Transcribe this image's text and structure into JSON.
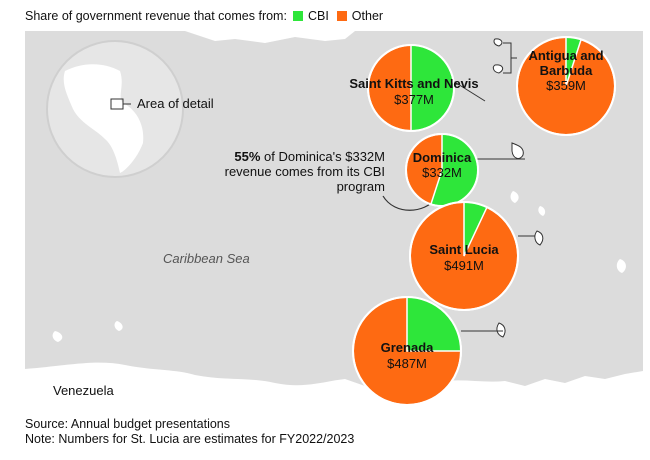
{
  "legend": {
    "prefix": "Share of government revenue that comes from:",
    "items": [
      {
        "label": "CBI",
        "color": "#2ee63a"
      },
      {
        "label": "Other",
        "color": "#fe6a12"
      }
    ]
  },
  "map": {
    "sea_label": "Caribbean Sea",
    "country_label": "Venezuela",
    "inset_label": "Area of detail"
  },
  "annotation": {
    "bold": "55%",
    "rest": "of Dominica's $332M revenue comes from its CBI program"
  },
  "chart_data": {
    "type": "pie",
    "title": "Share of government revenue that comes from: CBI, Other",
    "series": [
      {
        "name": "Saint Kitts and Nevis",
        "revenue": "$377M",
        "cbi_share": 0.5,
        "other_share": 0.5
      },
      {
        "name": "Antigua and Barbuda",
        "revenue": "$359M",
        "cbi_share": 0.05,
        "other_share": 0.95
      },
      {
        "name": "Dominica",
        "revenue": "$332M",
        "cbi_share": 0.55,
        "other_share": 0.45
      },
      {
        "name": "Saint Lucia",
        "revenue": "$491M",
        "cbi_share": 0.07,
        "other_share": 0.93
      },
      {
        "name": "Grenada",
        "revenue": "$487M",
        "cbi_share": 0.25,
        "other_share": 0.75
      }
    ],
    "colors": {
      "cbi": "#2ee63a",
      "other": "#fe6a12"
    }
  },
  "footer": {
    "source": "Source: Annual budget presentations",
    "note": "Note: Numbers for St. Lucia are estimates for FY2022/2023"
  }
}
